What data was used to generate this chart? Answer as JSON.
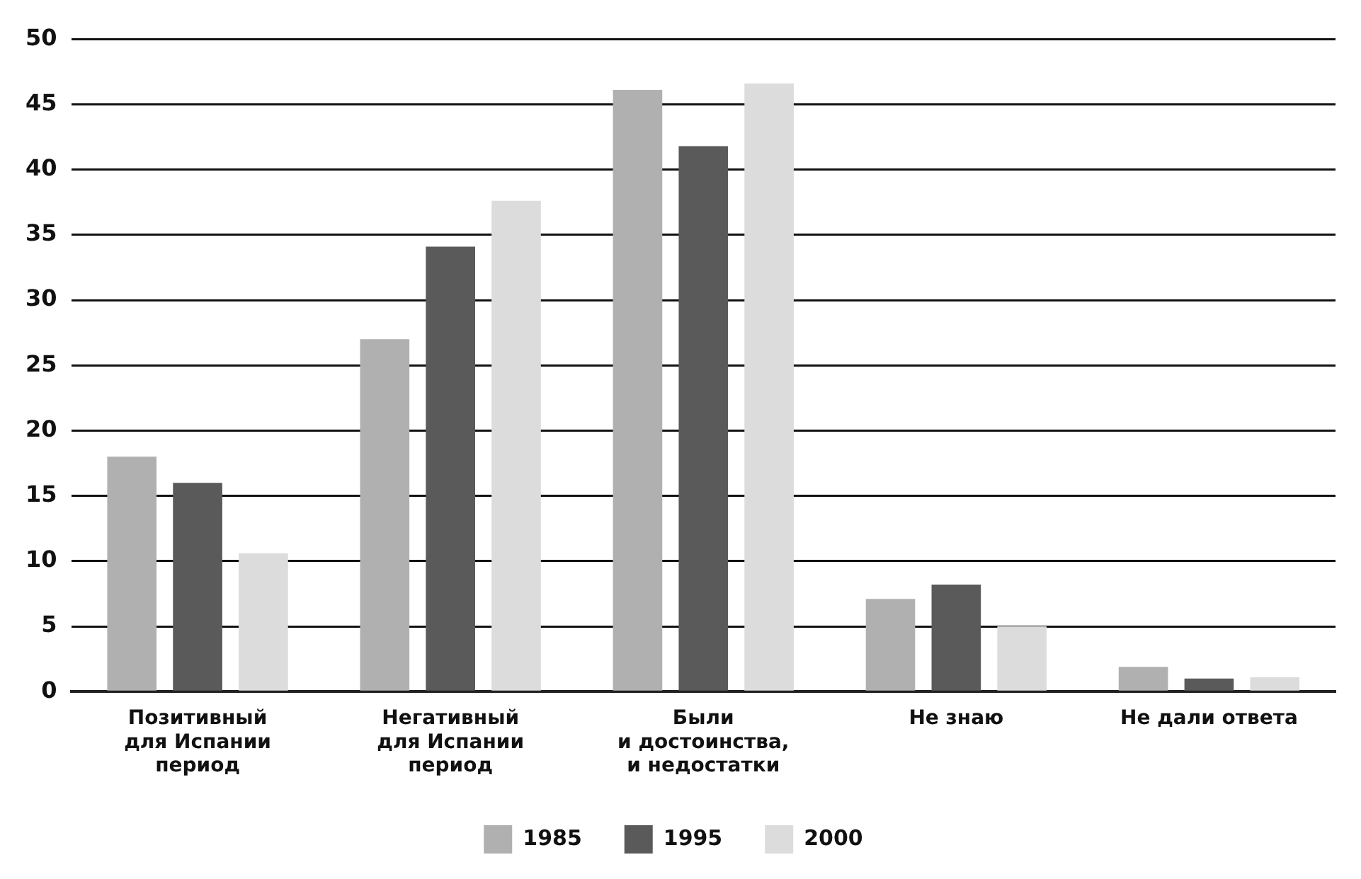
{
  "chart_data": {
    "type": "bar",
    "categories": [
      "Позитивный\nдля Испании\nпериод",
      "Негативный\nдля Испании\nпериод",
      "Были\nи достоинства,\nи недостатки",
      "Не знаю",
      "Не дали ответа"
    ],
    "series": [
      {
        "name": "1985",
        "color": "#b0b0b0",
        "values": [
          18,
          27,
          46.1,
          7.1,
          1.9
        ]
      },
      {
        "name": "1995",
        "color": "#5a5a5a",
        "values": [
          16,
          34.1,
          41.8,
          8.2,
          1
        ]
      },
      {
        "name": "2000",
        "color": "#dcdcdc",
        "values": [
          10.6,
          37.6,
          46.6,
          5,
          1.1
        ]
      }
    ],
    "ylim": [
      0,
      50
    ],
    "yticks": [
      0,
      5,
      10,
      15,
      20,
      25,
      30,
      35,
      40,
      45,
      50
    ],
    "grid": "y",
    "legend": "bottom"
  }
}
